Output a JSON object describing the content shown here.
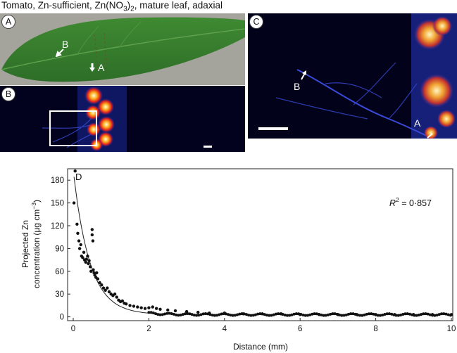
{
  "figure": {
    "title_prefix": "Tomato, Zn-sufficient, Zn(NO",
    "title_sub": "3",
    "title_mid": ")",
    "title_sub2": "2",
    "title_suffix": ", mature leaf, adaxial"
  },
  "panels": {
    "a": {
      "letter": "A",
      "point_b": "B",
      "point_a": "A"
    },
    "b": {
      "letter": "B"
    },
    "c": {
      "letter": "C",
      "point_b": "B",
      "point_a": "A"
    },
    "d": {
      "letter": "D"
    }
  },
  "chart_data": {
    "type": "scatter",
    "title": "",
    "xlabel": "Distance (mm)",
    "ylabel_line1": "Projected Zn",
    "ylabel_line2_prefix": "concentration (µg cm",
    "ylabel_sup": "−3",
    "ylabel_line2_suffix": ")",
    "xlim": [
      0,
      10
    ],
    "ylim": [
      -5,
      195
    ],
    "xticks": [
      0,
      2,
      4,
      6,
      8,
      10
    ],
    "yticks": [
      0,
      30,
      60,
      90,
      120,
      150,
      180
    ],
    "grid": false,
    "annotation_prefix": "R",
    "annotation_sup": "2",
    "annotation_suffix": " = 0·857",
    "fit": {
      "type": "exponential-decay",
      "a": 190,
      "k": 2.3,
      "c": 3
    },
    "points": [
      [
        0.02,
        150
      ],
      [
        0.05,
        192
      ],
      [
        0.1,
        122
      ],
      [
        0.12,
        110
      ],
      [
        0.15,
        100
      ],
      [
        0.17,
        90
      ],
      [
        0.2,
        95
      ],
      [
        0.22,
        80
      ],
      [
        0.25,
        78
      ],
      [
        0.28,
        85
      ],
      [
        0.3,
        75
      ],
      [
        0.33,
        72
      ],
      [
        0.35,
        76
      ],
      [
        0.38,
        80
      ],
      [
        0.4,
        70
      ],
      [
        0.42,
        74
      ],
      [
        0.45,
        66
      ],
      [
        0.47,
        60
      ],
      [
        0.5,
        115
      ],
      [
        0.5,
        108
      ],
      [
        0.52,
        100
      ],
      [
        0.53,
        62
      ],
      [
        0.55,
        58
      ],
      [
        0.57,
        55
      ],
      [
        0.6,
        52
      ],
      [
        0.62,
        58
      ],
      [
        0.65,
        50
      ],
      [
        0.7,
        45
      ],
      [
        0.75,
        42
      ],
      [
        0.8,
        38
      ],
      [
        0.85,
        35
      ],
      [
        0.9,
        38
      ],
      [
        0.95,
        33
      ],
      [
        1.0,
        30
      ],
      [
        1.05,
        28
      ],
      [
        1.1,
        30
      ],
      [
        1.15,
        26
      ],
      [
        1.2,
        22
      ],
      [
        1.25,
        20
      ],
      [
        1.3,
        21
      ],
      [
        1.35,
        18
      ],
      [
        1.4,
        17
      ],
      [
        1.5,
        15
      ],
      [
        1.6,
        14
      ],
      [
        1.7,
        13
      ],
      [
        1.8,
        12
      ],
      [
        1.9,
        11
      ],
      [
        2.0,
        12
      ],
      [
        2.1,
        13
      ],
      [
        2.2,
        11
      ],
      [
        2.3,
        10
      ],
      [
        2.5,
        9
      ],
      [
        2.7,
        8
      ],
      [
        3.0,
        7
      ],
      [
        3.3,
        6
      ],
      [
        3.6,
        5
      ],
      [
        4.0,
        5
      ],
      [
        4.5,
        4
      ],
      [
        5.0,
        4
      ],
      [
        5.5,
        4
      ],
      [
        6.0,
        3
      ],
      [
        6.5,
        3
      ],
      [
        7.0,
        3
      ],
      [
        7.5,
        3
      ],
      [
        8.0,
        3
      ],
      [
        8.5,
        3
      ],
      [
        9.0,
        3
      ],
      [
        9.5,
        3
      ],
      [
        10.0,
        3
      ]
    ]
  }
}
